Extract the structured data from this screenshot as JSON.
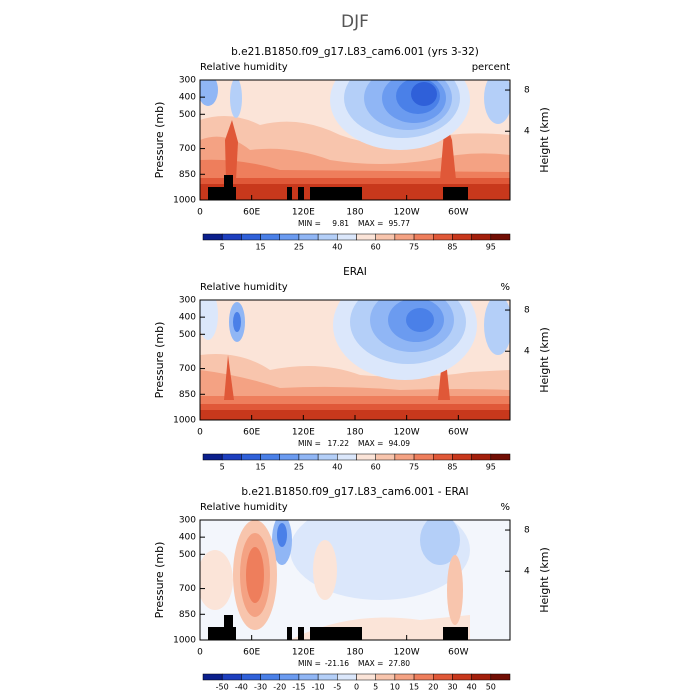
{
  "title": "DJF",
  "colormap": [
    "#0b1f8c",
    "#1d3fbf",
    "#2f60d9",
    "#4a80e8",
    "#6b9bf0",
    "#90b6f5",
    "#b4cff8",
    "#dbe7fb",
    "#fbe4d8",
    "#f8c5ad",
    "#f4a283",
    "#ee7e5c",
    "#e05838",
    "#c8381c",
    "#a31f0c",
    "#720e04"
  ],
  "chart_data": [
    {
      "type": "contour",
      "title": "b.e21.B1850.f09_g17.L83_cam6.001 (yrs 3-32)",
      "left_label": "Relative humidity",
      "right_label": "percent",
      "xlim": [
        0,
        360
      ],
      "xticks": [
        0,
        {
          "value": 60,
          "label": "60E"
        },
        {
          "value": 120,
          "label": "120E"
        },
        180,
        {
          "value": 240,
          "label": "120W"
        },
        {
          "value": 300,
          "label": "60W"
        }
      ],
      "ylabel": "Pressure (mb)",
      "ylim": [
        1000,
        300
      ],
      "yticks": [
        300,
        400,
        500,
        700,
        850,
        1000
      ],
      "y2label": "Height (km)",
      "y2ticks": [
        4,
        8
      ],
      "min_label": "MIN =",
      "min": 9.81,
      "max_label": "MAX =",
      "max": 95.77,
      "levels": [
        5,
        10,
        15,
        20,
        25,
        30,
        40,
        50,
        60,
        70,
        75,
        80,
        85,
        90,
        95
      ],
      "label_every": 2
    },
    {
      "type": "contour",
      "title": "ERAI",
      "left_label": "Relative humidity",
      "right_label": "%",
      "xlim": [
        0,
        360
      ],
      "xticks": [
        0,
        {
          "value": 60,
          "label": "60E"
        },
        {
          "value": 120,
          "label": "120E"
        },
        180,
        {
          "value": 240,
          "label": "120W"
        },
        {
          "value": 300,
          "label": "60W"
        }
      ],
      "ylabel": "Pressure (mb)",
      "ylim": [
        1000,
        300
      ],
      "yticks": [
        300,
        400,
        500,
        700,
        850,
        1000
      ],
      "y2label": "Height (km)",
      "y2ticks": [
        4,
        8
      ],
      "min_label": "MIN =",
      "min": 17.22,
      "max_label": "MAX =",
      "max": 94.09,
      "levels": [
        5,
        10,
        15,
        20,
        25,
        30,
        40,
        50,
        60,
        70,
        75,
        80,
        85,
        90,
        95
      ],
      "label_every": 2
    },
    {
      "type": "contour",
      "title": "b.e21.B1850.f09_g17.L83_cam6.001 - ERAI",
      "left_label": "Relative humidity",
      "right_label": "%",
      "xlim": [
        0,
        360
      ],
      "xticks": [
        0,
        {
          "value": 60,
          "label": "60E"
        },
        {
          "value": 120,
          "label": "120E"
        },
        180,
        {
          "value": 240,
          "label": "120W"
        },
        {
          "value": 300,
          "label": "60W"
        }
      ],
      "ylabel": "Pressure (mb)",
      "ylim": [
        1000,
        300
      ],
      "yticks": [
        300,
        400,
        500,
        700,
        850,
        1000
      ],
      "y2label": "Height (km)",
      "y2ticks": [
        4,
        8
      ],
      "min_label": "MIN =",
      "min": -21.16,
      "max_label": "MAX =",
      "max": {
        "value": 27.8,
        "label": "27.80"
      },
      "levels": [
        -50,
        -40,
        -30,
        -20,
        -15,
        -10,
        -5,
        0,
        5,
        10,
        15,
        20,
        30,
        40,
        50
      ],
      "label_every": 1
    }
  ]
}
